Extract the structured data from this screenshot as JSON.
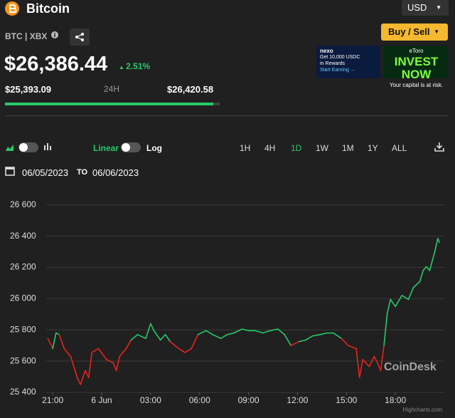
{
  "header": {
    "title": "Bitcoin",
    "currency": "USD",
    "symbol": "BTC | XBX",
    "price": "$26,386.44",
    "change": "2.51%",
    "low": "$25,393.09",
    "period": "24H",
    "high": "$26,420.58",
    "buy_sell": "Buy / Sell"
  },
  "ads": [
    {
      "brand": "nexo",
      "line1": "Get 10,000 USDC",
      "line2": "in Rewards",
      "cta": "Start Earning →"
    },
    {
      "brand": "eToro",
      "headline": "INVEST NOW",
      "note": "Your capital is at risk."
    }
  ],
  "controls": {
    "linear": "Linear",
    "log": "Log",
    "ranges": [
      "1H",
      "4H",
      "1D",
      "1W",
      "1M",
      "1Y",
      "ALL"
    ],
    "active_range": "1D",
    "date_from": "06/05/2023",
    "to": "TO",
    "date_to": "06/06/2023"
  },
  "chart_data": {
    "type": "line",
    "watermark": "CoinDesk",
    "credit": "Highcharts.com",
    "x": [
      -0.3,
      0,
      0.2,
      0.4,
      0.7,
      1.1,
      1.5,
      1.7,
      2.0,
      2.2,
      2.4,
      2.8,
      3.3,
      3.7,
      3.9,
      4.1,
      4.5,
      4.8,
      5.2,
      5.7,
      6.0,
      6.2,
      6.6,
      6.9,
      7.2,
      7.6,
      8.1,
      8.5,
      8.9,
      9.4,
      9.8,
      10.3,
      10.7,
      11.1,
      11.6,
      12.0,
      12.4,
      12.9,
      13.3,
      13.8,
      14.2,
      14.6,
      15.1,
      15.5,
      15.9,
      16.4,
      16.8,
      17.2,
      17.7,
      18.1,
      18.6,
      18.8,
      19.0,
      19.4,
      19.7,
      19.9,
      20.1,
      20.3,
      20.5,
      20.7,
      21.0,
      21.4,
      21.8,
      22.1,
      22.5,
      22.7,
      22.9,
      23.1,
      23.4,
      23.6,
      23.7
    ],
    "values": [
      25745,
      25680,
      25780,
      25770,
      25680,
      25630,
      25495,
      25450,
      25540,
      25495,
      25655,
      25680,
      25610,
      25590,
      25540,
      25630,
      25680,
      25735,
      25770,
      25745,
      25840,
      25795,
      25735,
      25770,
      25725,
      25690,
      25655,
      25680,
      25770,
      25795,
      25770,
      25745,
      25770,
      25780,
      25805,
      25795,
      25795,
      25780,
      25795,
      25805,
      25770,
      25700,
      25725,
      25735,
      25760,
      25770,
      25780,
      25780,
      25745,
      25700,
      25680,
      25495,
      25610,
      25565,
      25630,
      25590,
      25540,
      25700,
      25905,
      25995,
      25950,
      26020,
      25995,
      26070,
      26110,
      26180,
      26205,
      26180,
      26295,
      26385,
      26360
    ],
    "threshold": 25730,
    "color_above": "#27c96b",
    "color_below": "#e8231e",
    "xlim": [
      -0.4,
      24
    ],
    "xticks": [
      {
        "value": 0,
        "label": "21:00"
      },
      {
        "value": 3,
        "label": "6 Jun"
      },
      {
        "value": 6,
        "label": "03:00"
      },
      {
        "value": 9,
        "label": "06:00"
      },
      {
        "value": 12,
        "label": "09:00"
      },
      {
        "value": 15,
        "label": "12:00"
      },
      {
        "value": 18,
        "label": "15:00"
      },
      {
        "value": 21,
        "label": "18:00"
      }
    ],
    "ylim": [
      25400,
      26690
    ],
    "yticks": [
      {
        "value": 25400,
        "label": "25 400"
      },
      {
        "value": 25600,
        "label": "25 600"
      },
      {
        "value": 25800,
        "label": "25 800"
      },
      {
        "value": 26000,
        "label": "26 000"
      },
      {
        "value": 26200,
        "label": "26 200"
      },
      {
        "value": 26400,
        "label": "26 400"
      },
      {
        "value": 26600,
        "label": "26 600"
      }
    ],
    "grid": true
  }
}
